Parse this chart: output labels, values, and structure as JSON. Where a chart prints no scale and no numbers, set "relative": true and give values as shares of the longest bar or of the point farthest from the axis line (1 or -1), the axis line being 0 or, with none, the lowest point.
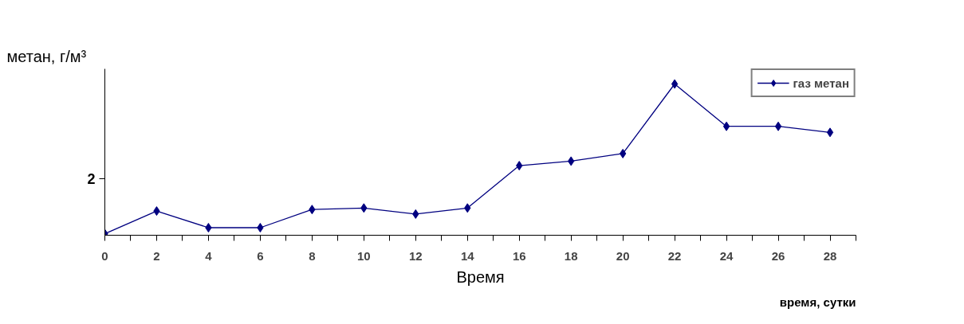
{
  "chart_data": {
    "type": "line",
    "ylabel": "метан, г/м³",
    "xlabel": "время, сутки",
    "annotations": [
      "2",
      "Время"
    ],
    "x": [
      0,
      2,
      4,
      6,
      8,
      10,
      12,
      14,
      16,
      18,
      20,
      22,
      24,
      26,
      28
    ],
    "xlim": [
      0,
      29
    ],
    "xticks": [
      0,
      {
        "value": 1,
        "label": null
      },
      2,
      {
        "value": 3,
        "label": null
      },
      4,
      {
        "value": 5,
        "label": null
      },
      6,
      {
        "value": 7,
        "label": null
      },
      8,
      {
        "value": 9,
        "label": null
      },
      10,
      {
        "value": 11,
        "label": null
      },
      12,
      {
        "value": 13,
        "label": null
      },
      14,
      {
        "value": 15,
        "label": null
      },
      16,
      {
        "value": 17,
        "label": null
      },
      18,
      {
        "value": 19,
        "label": null
      },
      20,
      {
        "value": 21,
        "label": null
      },
      22,
      {
        "value": 23,
        "label": null
      },
      24,
      {
        "value": 25,
        "label": null
      },
      26,
      {
        "value": 27,
        "label": null
      },
      28,
      {
        "value": 29,
        "label": null
      }
    ],
    "relative": true,
    "series": [
      {
        "name": "газ метан",
        "color": "#000080",
        "values": [
          0.01,
          0.16,
          0.05,
          0.05,
          0.17,
          0.18,
          0.14,
          0.18,
          0.46,
          0.49,
          0.54,
          1,
          0.72,
          0.72,
          0.68
        ]
      }
    ],
    "marker": "diamond",
    "line_style": "solid",
    "legend": "top right",
    "grid": false
  }
}
